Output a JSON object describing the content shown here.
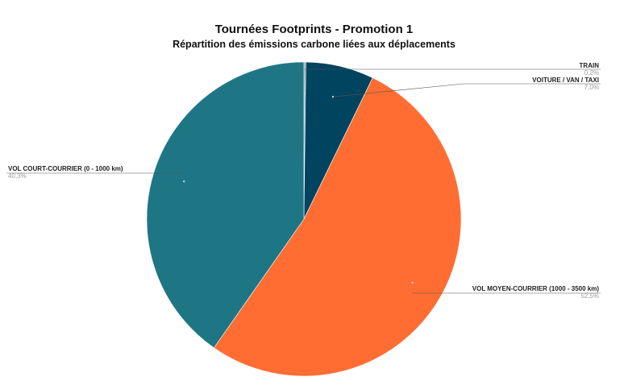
{
  "chart_data": {
    "type": "pie",
    "title": "Tournées Footprints - Promotion 1",
    "subtitle": "Répartition des émissions carbone liées aux déplacements",
    "slices": [
      {
        "label": "TRAIN",
        "value": 0.2,
        "display": "0,2%",
        "color": "#8fa3ad"
      },
      {
        "label": "VOITURE / VAN / TAXI",
        "value": 7.0,
        "display": "7,0%",
        "color": "#01445f"
      },
      {
        "label": "VOL MOYEN-COURRIER (1000 - 3500 km)",
        "value": 52.5,
        "display": "52,5%",
        "color": "#ff6d33"
      },
      {
        "label": "VOL COURT-COURRIER (0 - 1000 km)",
        "value": 40.3,
        "display": "40,3%",
        "color": "#1e7685"
      }
    ],
    "legend": "none",
    "label_placement": "leader-lines"
  }
}
